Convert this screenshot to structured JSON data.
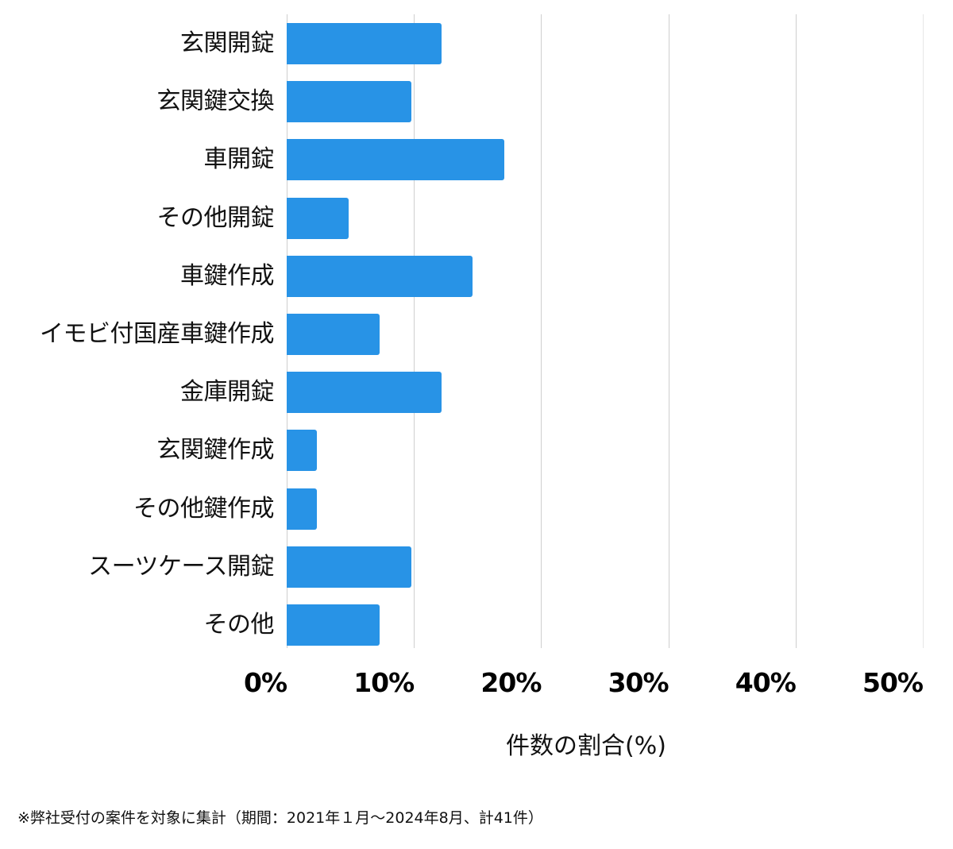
{
  "chart_data": {
    "type": "bar",
    "orientation": "horizontal",
    "title": "",
    "xlabel": "件数の割合(%)",
    "ylabel": "",
    "xlim": [
      0,
      50
    ],
    "x_ticks": [
      "0%",
      "10%",
      "20%",
      "30%",
      "40%",
      "50%"
    ],
    "grid": true,
    "legend": null,
    "bar_color": "#2893e6",
    "categories": [
      "玄関開錠",
      "玄関鍵交換",
      "車開錠",
      "その他開錠",
      "車鍵作成",
      "イモビ付国産車鍵作成",
      "金庫開錠",
      "玄関鍵作成",
      "その他鍵作成",
      "スーツケース開錠",
      "その他"
    ],
    "values": [
      12.2,
      9.8,
      17.1,
      4.9,
      14.6,
      7.3,
      12.2,
      2.4,
      2.4,
      9.8,
      7.3
    ],
    "counts_estimated": [
      5,
      4,
      7,
      2,
      6,
      3,
      5,
      1,
      1,
      4,
      3
    ],
    "total_count": 41,
    "footnote": "※弊社受付の案件を対象に集計（期間：2021年１月〜2024年8月、計41件）"
  },
  "labels": {
    "categories": [
      "玄関開錠",
      "玄関鍵交換",
      "車開錠",
      "その他開錠",
      "車鍵作成",
      "イモビ付国産車鍵作成",
      "金庫開錠",
      "玄関鍵作成",
      "その他鍵作成",
      "スーツケース開錠",
      "その他"
    ],
    "ticks": [
      "0%",
      "10%",
      "20%",
      "30%",
      "40%",
      "50%"
    ],
    "xlabel": "件数の割合(%)",
    "note": "※弊社受付の案件を対象に集計（期間：2021年１月〜2024年8月、計41件）"
  }
}
